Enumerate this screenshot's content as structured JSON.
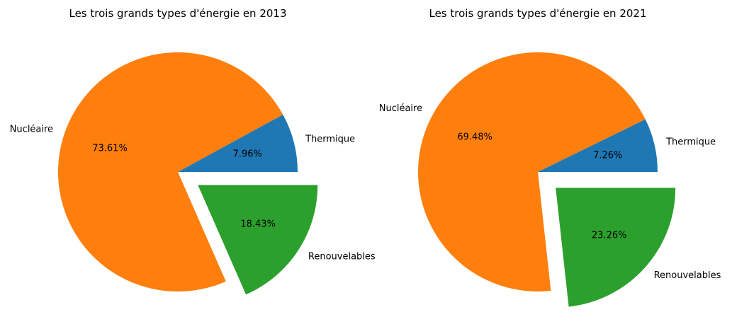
{
  "chart_data": [
    {
      "type": "pie",
      "title": "Les trois grands types d'énergie en 2013",
      "slices": [
        {
          "label": "Thermique",
          "value": 7.96,
          "pct_label": "7.96%",
          "color": "#1f77b4",
          "explode": 0
        },
        {
          "label": "Nucléaire",
          "value": 73.61,
          "pct_label": "73.61%",
          "color": "#ff7f0e",
          "explode": 0
        },
        {
          "label": "Renouvelables",
          "value": 18.43,
          "pct_label": "18.43%",
          "color": "#2ca02c",
          "explode": 0.2
        }
      ]
    },
    {
      "type": "pie",
      "title": "Les trois grands types d'énergie en 2021",
      "slices": [
        {
          "label": "Thermique",
          "value": 7.26,
          "pct_label": "7.26%",
          "color": "#1f77b4",
          "explode": 0
        },
        {
          "label": "Nucléaire",
          "value": 69.48,
          "pct_label": "69.48%",
          "color": "#ff7f0e",
          "explode": 0
        },
        {
          "label": "Renouvelables",
          "value": 23.26,
          "pct_label": "23.26%",
          "color": "#2ca02c",
          "explode": 0.2
        }
      ]
    }
  ]
}
